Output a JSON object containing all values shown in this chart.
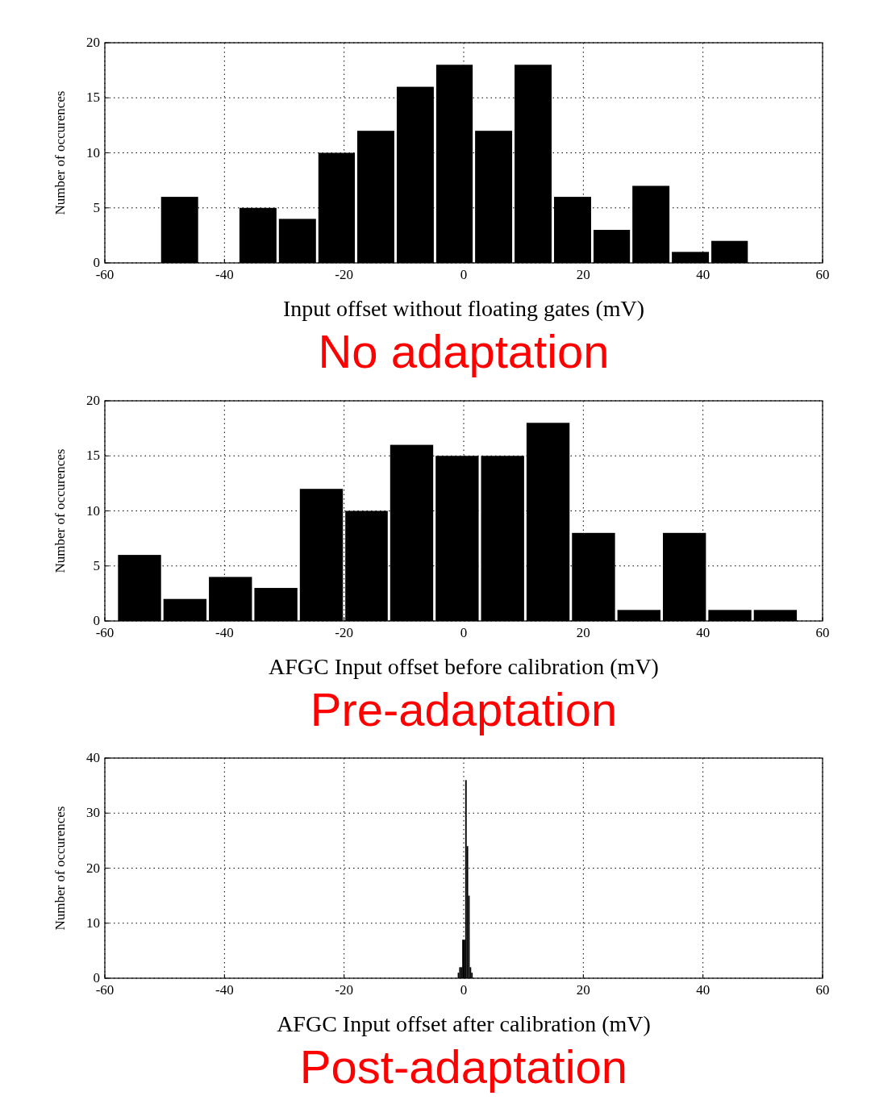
{
  "chart_data": [
    {
      "type": "histogram",
      "xlabel": "Input offset without floating gates (mV)",
      "ylabel": "Number of occurences",
      "annotations": [
        "No adaptation"
      ],
      "bins": [
        -50.8,
        -44.2,
        -37.7,
        -31.1,
        -24.5,
        -18.0,
        -11.4,
        -4.8,
        1.7,
        8.3,
        14.9,
        21.5,
        28.0,
        34.6,
        41.2,
        47.7
      ],
      "values": [
        6,
        0,
        5,
        4,
        10,
        12,
        16,
        18,
        12,
        18,
        6,
        3,
        7,
        1,
        2
      ],
      "color": "#000000",
      "xlim": [
        -60,
        60
      ],
      "xticks": [
        -60,
        -40,
        -20,
        0,
        20,
        40,
        60
      ],
      "ylim": [
        0,
        20
      ],
      "yticks": [
        0,
        5,
        10,
        15,
        20
      ],
      "grid": true
    },
    {
      "type": "histogram",
      "xlabel": "AFGC Input offset before calibration (mV)",
      "ylabel": "Number of occurences",
      "annotations": [
        "Pre-adaptation"
      ],
      "bins": [
        -58.0,
        -50.4,
        -42.8,
        -35.2,
        -27.6,
        -20.0,
        -12.5,
        -4.9,
        2.7,
        10.3,
        17.9,
        25.5,
        33.1,
        40.7,
        48.3,
        55.9
      ],
      "values": [
        6,
        2,
        4,
        3,
        12,
        10,
        16,
        15,
        15,
        18,
        8,
        1,
        8,
        1,
        1
      ],
      "color": "#000000",
      "xlim": [
        -60,
        60
      ],
      "xticks": [
        -60,
        -40,
        -20,
        0,
        20,
        40,
        60
      ],
      "ylim": [
        0,
        20
      ],
      "yticks": [
        0,
        5,
        10,
        15,
        20
      ],
      "grid": true
    },
    {
      "type": "histogram",
      "xlabel": "AFGC Input offset after calibration (mV)",
      "ylabel": "Number of occurences",
      "annotations": [
        "Post-adaptation"
      ],
      "bins": [
        -1.0,
        -0.75,
        -0.5,
        -0.25,
        0,
        0.25,
        0.5,
        0.75,
        1.0,
        1.25,
        1.5
      ],
      "values": [
        1,
        2,
        2,
        7,
        7,
        36,
        24,
        15,
        2,
        1
      ],
      "color": "#000000",
      "xlim": [
        -60,
        60
      ],
      "xticks": [
        -60,
        -40,
        -20,
        0,
        20,
        40,
        60
      ],
      "ylim": [
        0,
        40
      ],
      "yticks": [
        0,
        10,
        20,
        30,
        40
      ],
      "grid": true
    }
  ]
}
